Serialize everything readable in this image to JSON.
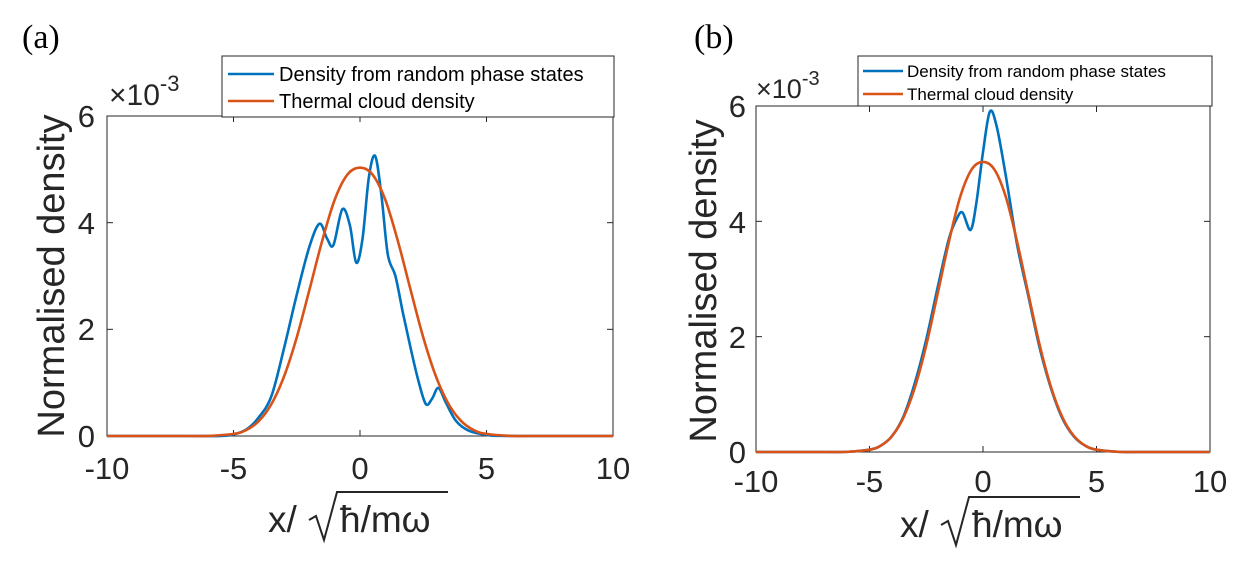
{
  "panels": [
    "(a)",
    "(b)"
  ],
  "colors": {
    "blue": "#0072BD",
    "orange": "#D95319",
    "axis": "#262626"
  },
  "chart_data": [
    {
      "type": "line",
      "panel_label": "(a)",
      "title": "",
      "xlabel": "x/√ħ/mω",
      "xlabel_parts": {
        "prefix": "x/",
        "under_root": "ħ/mω"
      },
      "ylabel": "Normalised density",
      "y_multiplier": "×10-3",
      "y_multiplier_parts": {
        "base": "×10",
        "exponent": "-3"
      },
      "xlim": [
        -10,
        10
      ],
      "ylim": [
        0,
        6
      ],
      "xticks": [
        -10,
        -5,
        0,
        5,
        10
      ],
      "xtick_labels": [
        "-10",
        "-5",
        "0",
        "5",
        "10"
      ],
      "yticks": [
        0,
        2,
        4,
        6
      ],
      "ytick_labels": [
        "0",
        "2",
        "4",
        "6"
      ],
      "grid": false,
      "legend": "top-right",
      "series": [
        {
          "name": "Density from random phase states",
          "color": "#0072BD",
          "x": [
            -10,
            -7,
            -5.5,
            -5,
            -4.5,
            -4,
            -3.5,
            -3,
            -2.5,
            -2,
            -1.6,
            -1.3,
            -1.05,
            -0.7,
            -0.4,
            -0.15,
            0.1,
            0.35,
            0.6,
            0.85,
            1.1,
            1.4,
            1.7,
            2.0,
            2.3,
            2.6,
            2.85,
            3.1,
            3.4,
            3.8,
            4.3,
            5,
            5.5,
            7,
            10
          ],
          "y": [
            0,
            0,
            0.002,
            0.03,
            0.12,
            0.35,
            0.75,
            1.65,
            2.65,
            3.55,
            3.98,
            3.7,
            3.58,
            4.25,
            3.95,
            3.25,
            3.7,
            4.85,
            5.25,
            4.5,
            3.4,
            3.0,
            2.3,
            1.65,
            1.05,
            0.6,
            0.7,
            0.9,
            0.62,
            0.28,
            0.1,
            0.02,
            0.003,
            0,
            0
          ]
        },
        {
          "name": "Thermal cloud density",
          "color": "#D95319",
          "x": [
            -10,
            -7,
            -6,
            -5,
            -4.5,
            -4,
            -3.5,
            -3,
            -2.5,
            -2,
            -1.5,
            -1,
            -0.5,
            0,
            0.5,
            1,
            1.5,
            2,
            2.5,
            3,
            3.5,
            4,
            4.5,
            5,
            6,
            7,
            10
          ],
          "y": [
            0,
            0,
            0.002,
            0.04,
            0.11,
            0.28,
            0.6,
            1.12,
            1.85,
            2.74,
            3.65,
            4.43,
            4.9,
            5.03,
            4.9,
            4.43,
            3.65,
            2.74,
            1.85,
            1.12,
            0.6,
            0.28,
            0.11,
            0.04,
            0.002,
            0,
            0
          ]
        }
      ]
    },
    {
      "type": "line",
      "panel_label": "(b)",
      "title": "",
      "xlabel": "x/√ħ/mω",
      "xlabel_parts": {
        "prefix": "x/",
        "under_root": "ħ/mω"
      },
      "ylabel": "Normalised density",
      "y_multiplier": "×10-3",
      "y_multiplier_parts": {
        "base": "×10",
        "exponent": "-3"
      },
      "xlim": [
        -10,
        10
      ],
      "ylim": [
        0,
        6
      ],
      "xticks": [
        -10,
        -5,
        0,
        5,
        10
      ],
      "xtick_labels": [
        "-10",
        "-5",
        "0",
        "5",
        "10"
      ],
      "yticks": [
        0,
        2,
        4,
        6
      ],
      "ytick_labels": [
        "0",
        "2",
        "4",
        "6"
      ],
      "grid": false,
      "legend": "top-right",
      "series": [
        {
          "name": "Density from random phase states",
          "color": "#0072BD",
          "x": [
            -10,
            -7,
            -6,
            -5,
            -4.5,
            -4,
            -3.5,
            -3,
            -2.5,
            -2,
            -1.5,
            -1.15,
            -0.9,
            -0.55,
            -0.3,
            0,
            0.3,
            0.6,
            1.0,
            1.5,
            2,
            2.5,
            3,
            3.5,
            4,
            4.5,
            5,
            6,
            7,
            10
          ],
          "y": [
            0,
            0,
            0.002,
            0.04,
            0.11,
            0.28,
            0.62,
            1.2,
            1.95,
            2.85,
            3.7,
            4.05,
            4.15,
            3.85,
            4.3,
            5.2,
            5.9,
            5.65,
            4.8,
            3.6,
            2.7,
            1.8,
            1.1,
            0.58,
            0.27,
            0.11,
            0.04,
            0.002,
            0,
            0
          ]
        },
        {
          "name": "Thermal cloud density",
          "color": "#D95319",
          "x": [
            -10,
            -7,
            -6,
            -5,
            -4.5,
            -4,
            -3.5,
            -3,
            -2.5,
            -2,
            -1.5,
            -1,
            -0.5,
            0,
            0.5,
            1,
            1.5,
            2,
            2.5,
            3,
            3.5,
            4,
            4.5,
            5,
            6,
            7,
            10
          ],
          "y": [
            0,
            0,
            0.002,
            0.04,
            0.11,
            0.28,
            0.6,
            1.12,
            1.85,
            2.74,
            3.65,
            4.43,
            4.9,
            5.03,
            4.9,
            4.43,
            3.65,
            2.74,
            1.85,
            1.12,
            0.6,
            0.28,
            0.11,
            0.04,
            0.002,
            0,
            0
          ]
        }
      ]
    }
  ]
}
